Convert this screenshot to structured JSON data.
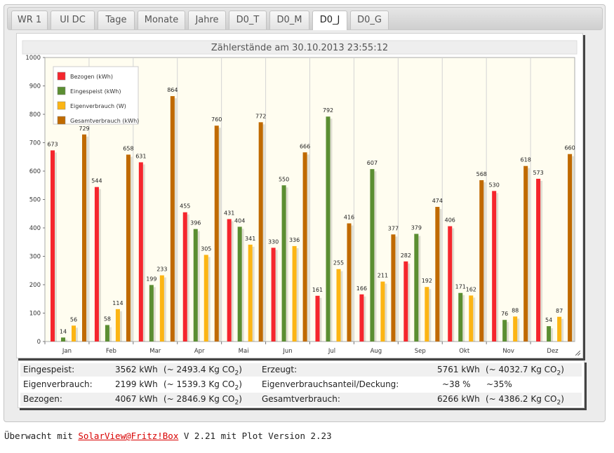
{
  "tabs": [
    "WR 1",
    "UI DC",
    "Tage",
    "Monate",
    "Jahre",
    "D0_T",
    "D0_M",
    "D0_J",
    "D0_G"
  ],
  "active_tab": "D0_J",
  "chart_data": {
    "type": "bar",
    "title": "Zählerstände am 30.10.2013 23:55:12",
    "categories": [
      "Jan",
      "Feb",
      "Mar",
      "Apr",
      "Mai",
      "Jun",
      "Jul",
      "Aug",
      "Sep",
      "Okt",
      "Nov",
      "Dez"
    ],
    "ylim": [
      0,
      1000
    ],
    "yticks": [
      0,
      100,
      200,
      300,
      400,
      500,
      600,
      700,
      800,
      900,
      1000
    ],
    "grid": "vertical",
    "legend_position": "top-left",
    "series": [
      {
        "name": "Bezogen (kWh)",
        "color": "#f5262d",
        "values": [
          673,
          544,
          631,
          455,
          431,
          330,
          161,
          166,
          282,
          406,
          530,
          573
        ]
      },
      {
        "name": "Eingespeist (kWh)",
        "color": "#5b8e32",
        "values": [
          14,
          58,
          199,
          396,
          404,
          550,
          792,
          607,
          379,
          171,
          76,
          54
        ]
      },
      {
        "name": "Eigenverbrauch (W)",
        "color": "#fcb514",
        "values": [
          56,
          114,
          233,
          305,
          341,
          336,
          255,
          211,
          192,
          162,
          88,
          87
        ]
      },
      {
        "name": "Gesamtverbrauch (kWh)",
        "color": "#c06a00",
        "values": [
          729,
          658,
          864,
          760,
          772,
          666,
          416,
          377,
          474,
          568,
          618,
          660
        ]
      }
    ]
  },
  "summary": {
    "eingespeist_label": "Eingespeist:",
    "eingespeist_value": "3562 kWh",
    "eingespeist_co2": "(~ 2493.4 Kg CO",
    "eigenverbrauch_label": "Eigenverbrauch:",
    "eigenverbrauch_value": "2199 kWh",
    "eigenverbrauch_co2": "(~ 1539.3 Kg CO",
    "bezogen_label": "Bezogen:",
    "bezogen_value": "4067 kWh",
    "bezogen_co2": "(~ 2846.9 Kg CO",
    "erzeugt_label": "Erzeugt:",
    "erzeugt_value": "5761 kWh",
    "erzeugt_co2": "(~ 4032.7 Kg CO",
    "anteil_label": "Eigenverbrauchsanteil/Deckung:",
    "anteil_value": "~38 %",
    "deckung_value": "~35%",
    "gesamt_label": "Gesamtverbrauch:",
    "gesamt_value": "6266 kWh",
    "gesamt_co2": "(~ 4386.2 Kg CO",
    "co2_sub": "2",
    "co2_close": ")"
  },
  "footer": {
    "prefix": "Überwacht mit ",
    "link": "SolarView@Fritz!Box",
    "suffix": " V 2.21 mit Plot Version 2.23"
  }
}
